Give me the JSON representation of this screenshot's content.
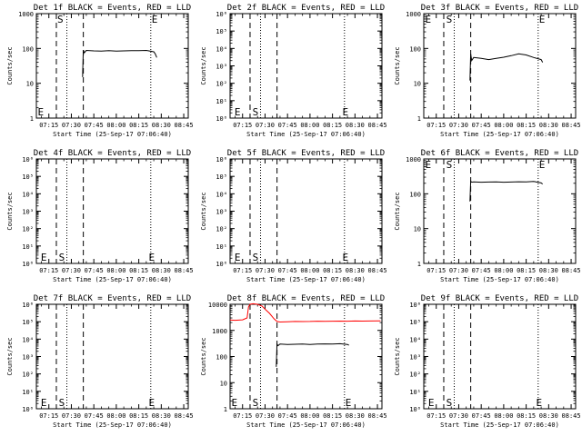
{
  "figure": {
    "ylabel": "Counts/sec",
    "xlabel": "Start Time (25-Sep-17 07:06:40)",
    "xticks": [
      "07:15",
      "07:30",
      "07:45",
      "08:00",
      "08:15",
      "08:30",
      "08:45"
    ],
    "marker_s": "S",
    "marker_e": "E",
    "colors": {
      "events": "#000000",
      "lld": "#ff0000"
    }
  },
  "chart_data": [
    {
      "type": "line",
      "title": "Det 1f BLACK = Events, RED = LLD",
      "scale": "log",
      "ylim": [
        1,
        1000
      ],
      "yticks": [
        "1",
        "10",
        "100",
        "1000"
      ],
      "xlim": [
        "07:06:40",
        "08:48:00"
      ],
      "dashed_lines": [
        "07:20",
        "07:38"
      ],
      "dotted_lines": [
        "07:27",
        "08:23"
      ],
      "labels": [
        {
          "text": "E",
          "x": "07:07",
          "pos": "low"
        },
        {
          "text": "S",
          "x": "07:20",
          "pos": "top"
        },
        {
          "text": "E",
          "x": "08:23",
          "pos": "top"
        }
      ],
      "series": [
        {
          "color": "#000000",
          "x": [
            "07:37:30",
            "07:38:00",
            "07:38:40",
            "07:40",
            "07:45",
            "07:50",
            "07:55",
            "08:00",
            "08:05",
            "08:10",
            "08:15",
            "08:20",
            "08:25",
            "08:26",
            "08:27"
          ],
          "y": [
            15,
            90,
            75,
            88,
            85,
            84,
            86,
            84,
            85,
            87,
            86,
            88,
            80,
            70,
            55
          ]
        }
      ]
    },
    {
      "type": "line",
      "title": "Det 2f BLACK = Events, RED = LLD",
      "scale": "log",
      "ylim": [
        1,
        1000000
      ],
      "yticks": [
        "10⁰",
        "10¹",
        "10²",
        "10³",
        "10⁴",
        "10⁵",
        "10⁶"
      ],
      "xlim": [
        "07:06:40",
        "08:48:00"
      ],
      "dashed_lines": [
        "07:20",
        "07:38"
      ],
      "dotted_lines": [
        "07:27",
        "08:23"
      ],
      "labels": [
        {
          "text": "E",
          "x": "07:09",
          "pos": "low"
        },
        {
          "text": "S",
          "x": "07:21",
          "pos": "low"
        },
        {
          "text": "E",
          "x": "08:21",
          "pos": "low"
        }
      ],
      "series": []
    },
    {
      "type": "line",
      "title": "Det 3f BLACK = Events, RED = LLD",
      "scale": "log",
      "ylim": [
        1,
        1000
      ],
      "yticks": [
        "1",
        "10",
        "100",
        "1000"
      ],
      "xlim": [
        "07:06:40",
        "08:48:00"
      ],
      "dashed_lines": [
        "07:20",
        "07:38"
      ],
      "dotted_lines": [
        "07:27",
        "08:23"
      ],
      "labels": [
        {
          "text": "E",
          "x": "07:07",
          "pos": "top"
        },
        {
          "text": "S",
          "x": "07:21",
          "pos": "top"
        },
        {
          "text": "E",
          "x": "08:23",
          "pos": "top"
        }
      ],
      "series": [
        {
          "color": "#000000",
          "x": [
            "07:37:30",
            "07:38:00",
            "07:38:40",
            "07:40",
            "07:45",
            "07:50",
            "07:55",
            "08:00",
            "08:05",
            "08:10",
            "08:15",
            "08:20",
            "08:25",
            "08:26"
          ],
          "y": [
            12,
            70,
            45,
            55,
            52,
            48,
            52,
            56,
            62,
            70,
            65,
            55,
            48,
            40
          ]
        }
      ]
    },
    {
      "type": "line",
      "title": "Det 4f BLACK = Events, RED = LLD",
      "scale": "log",
      "ylim": [
        1,
        1000000
      ],
      "yticks": [
        "10⁰",
        "10¹",
        "10²",
        "10³",
        "10⁴",
        "10⁵",
        "10⁶"
      ],
      "xlim": [
        "07:06:40",
        "08:48:00"
      ],
      "dashed_lines": [
        "07:20",
        "07:38"
      ],
      "dotted_lines": [
        "07:27",
        "08:23"
      ],
      "labels": [
        {
          "text": "E",
          "x": "07:09",
          "pos": "low"
        },
        {
          "text": "S",
          "x": "07:21",
          "pos": "low"
        },
        {
          "text": "E",
          "x": "08:21",
          "pos": "low"
        }
      ],
      "series": []
    },
    {
      "type": "line",
      "title": "Det 5f BLACK = Events, RED = LLD",
      "scale": "log",
      "ylim": [
        1,
        1000000
      ],
      "yticks": [
        "10⁰",
        "10¹",
        "10²",
        "10³",
        "10⁴",
        "10⁵",
        "10⁶"
      ],
      "xlim": [
        "07:06:40",
        "08:48:00"
      ],
      "dashed_lines": [
        "07:20",
        "07:38"
      ],
      "dotted_lines": [
        "07:27",
        "08:23"
      ],
      "labels": [
        {
          "text": "E",
          "x": "07:09",
          "pos": "low"
        },
        {
          "text": "S",
          "x": "07:21",
          "pos": "low"
        },
        {
          "text": "E",
          "x": "08:21",
          "pos": "low"
        }
      ],
      "series": []
    },
    {
      "type": "line",
      "title": "Det 6f BLACK = Events, RED = LLD",
      "scale": "log",
      "ylim": [
        1,
        1000
      ],
      "yticks": [
        "1",
        "10",
        "100",
        "1000"
      ],
      "xlim": [
        "07:06:40",
        "08:48:00"
      ],
      "dashed_lines": [
        "07:20",
        "07:38"
      ],
      "dotted_lines": [
        "07:27",
        "08:23"
      ],
      "labels": [
        {
          "text": "E",
          "x": "07:07",
          "pos": "top"
        },
        {
          "text": "S",
          "x": "07:21",
          "pos": "top"
        },
        {
          "text": "E",
          "x": "08:23",
          "pos": "top"
        }
      ],
      "series": [
        {
          "color": "#000000",
          "x": [
            "07:37:30",
            "07:38:00",
            "07:38:40",
            "07:40",
            "07:45",
            "07:50",
            "07:55",
            "08:00",
            "08:05",
            "08:10",
            "08:15",
            "08:20",
            "08:25",
            "08:26"
          ],
          "y": [
            60,
            230,
            215,
            220,
            215,
            218,
            220,
            215,
            218,
            222,
            220,
            225,
            205,
            190
          ]
        }
      ]
    },
    {
      "type": "line",
      "title": "Det 7f BLACK = Events, RED = LLD",
      "scale": "log",
      "ylim": [
        1,
        1000000
      ],
      "yticks": [
        "10⁰",
        "10¹",
        "10²",
        "10³",
        "10⁴",
        "10⁵",
        "10⁶"
      ],
      "xlim": [
        "07:06:40",
        "08:48:00"
      ],
      "dashed_lines": [
        "07:20",
        "07:38"
      ],
      "dotted_lines": [
        "07:27",
        "08:23"
      ],
      "labels": [
        {
          "text": "E",
          "x": "07:09",
          "pos": "low"
        },
        {
          "text": "S",
          "x": "07:21",
          "pos": "low"
        },
        {
          "text": "E",
          "x": "08:21",
          "pos": "low"
        }
      ],
      "series": []
    },
    {
      "type": "line",
      "title": "Det 8f BLACK = Events, RED = LLD",
      "scale": "log",
      "ylim": [
        1,
        10000
      ],
      "yticks": [
        "1",
        "10",
        "100",
        "1000",
        "10000"
      ],
      "xlim": [
        "07:06:40",
        "08:48:00"
      ],
      "dashed_lines": [
        "07:20",
        "07:38"
      ],
      "dotted_lines": [
        "07:27",
        "08:23"
      ],
      "labels": [
        {
          "text": "E",
          "x": "07:07",
          "pos": "low"
        },
        {
          "text": "S",
          "x": "07:21",
          "pos": "low"
        },
        {
          "text": "E",
          "x": "08:23",
          "pos": "low"
        }
      ],
      "series": [
        {
          "color": "#ff0000",
          "x": [
            "07:06:40",
            "07:10",
            "07:15",
            "07:18",
            "07:19",
            "07:20",
            "07:22",
            "07:25",
            "07:28",
            "07:30",
            "07:33",
            "07:36",
            "07:38",
            "07:40",
            "07:45",
            "07:50",
            "07:55",
            "08:00",
            "08:05",
            "08:10",
            "08:15",
            "08:20",
            "08:25",
            "08:30",
            "08:35",
            "08:40",
            "08:47"
          ],
          "y": [
            2500,
            2450,
            2550,
            3000,
            8000,
            10000,
            10500,
            10000,
            8500,
            6500,
            4500,
            2800,
            2200,
            2100,
            2150,
            2200,
            2180,
            2200,
            2250,
            2220,
            2250,
            2270,
            2250,
            2300,
            2280,
            2300,
            2320
          ]
        },
        {
          "color": "#000000",
          "x": [
            "07:37:30",
            "07:38:00",
            "07:38:40",
            "07:40",
            "07:45",
            "07:50",
            "07:55",
            "08:00",
            "08:05",
            "08:10",
            "08:15",
            "08:20",
            "08:25",
            "08:26"
          ],
          "y": [
            40,
            300,
            260,
            300,
            290,
            295,
            300,
            290,
            300,
            305,
            300,
            310,
            290,
            270
          ]
        }
      ]
    },
    {
      "type": "line",
      "title": "Det 9f BLACK = Events, RED = LLD",
      "scale": "log",
      "ylim": [
        1,
        1000000
      ],
      "yticks": [
        "10⁰",
        "10¹",
        "10²",
        "10³",
        "10⁴",
        "10⁵",
        "10⁶"
      ],
      "xlim": [
        "07:06:40",
        "08:48:00"
      ],
      "dashed_lines": [
        "07:20",
        "07:38"
      ],
      "dotted_lines": [
        "07:27",
        "08:23"
      ],
      "labels": [
        {
          "text": "E",
          "x": "07:09",
          "pos": "low"
        },
        {
          "text": "S",
          "x": "07:21",
          "pos": "low"
        },
        {
          "text": "E",
          "x": "08:21",
          "pos": "low"
        }
      ],
      "series": []
    }
  ]
}
